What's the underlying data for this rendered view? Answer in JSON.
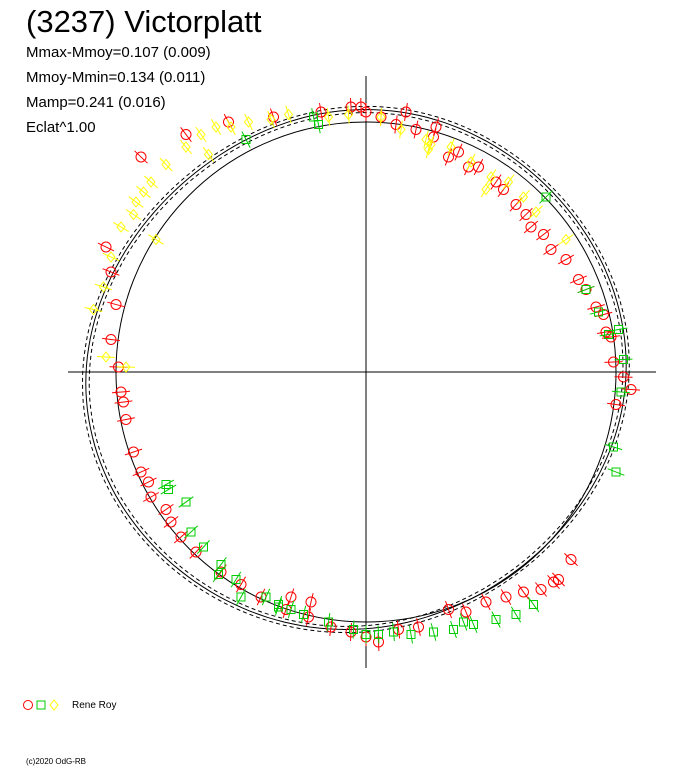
{
  "title": "(3237) Victorplatt",
  "stats": [
    "Mmax-Mmoy=0.107 (0.009)",
    "Mmoy-Mmin=0.134 (0.011)",
    "Mamp=0.241 (0.016)",
    "Eclat^1.00"
  ],
  "legend": {
    "observer": "Rene Roy",
    "markers": [
      "circle",
      "square",
      "diamond"
    ]
  },
  "credit": "(c)2020 OdG-RB",
  "colors": {
    "red": "#ff0000",
    "green": "#00cc00",
    "yellow": "#ffff00",
    "axis": "#000000"
  },
  "chart_data": {
    "type": "scatter",
    "projection": "polar lightcurve",
    "title": "(3237) Victorplatt",
    "xlim": [
      -1,
      1
    ],
    "ylim": [
      -1,
      1
    ],
    "reference_circle": true,
    "model_curves": 3,
    "series": [
      {
        "name": "Rene Roy",
        "marker": "circle",
        "color": "#ff0000",
        "points": [
          [
            -0.02,
            1.06
          ],
          [
            0.0,
            1.04
          ],
          [
            0.06,
            1.02
          ],
          [
            0.12,
            0.99
          ],
          [
            0.2,
            0.97
          ],
          [
            0.27,
            0.94
          ],
          [
            0.33,
            0.86
          ],
          [
            0.41,
            0.82
          ],
          [
            0.52,
            0.76
          ],
          [
            0.6,
            0.67
          ],
          [
            0.66,
            0.58
          ],
          [
            0.74,
            0.49
          ],
          [
            0.85,
            0.37
          ],
          [
            0.92,
            0.26
          ],
          [
            0.96,
            0.16
          ],
          [
            0.99,
            0.04
          ],
          [
            1.03,
            -0.02
          ],
          [
            1.06,
            -0.07
          ],
          [
            1.0,
            -0.13
          ],
          [
            0.82,
            -0.75
          ],
          [
            0.77,
            -0.83
          ],
          [
            0.7,
            -0.87
          ],
          [
            0.56,
            -0.9
          ],
          [
            0.48,
            -0.92
          ],
          [
            0.33,
            -0.95
          ],
          [
            0.21,
            -1.02
          ],
          [
            0.13,
            -1.03
          ],
          [
            0.05,
            -1.08
          ],
          [
            0.0,
            -1.06
          ],
          [
            -0.06,
            -1.04
          ],
          [
            -0.14,
            -1.02
          ],
          [
            -0.23,
            -0.98
          ],
          [
            -0.32,
            -0.95
          ],
          [
            -0.42,
            -0.9
          ],
          [
            -0.5,
            -0.85
          ],
          [
            -0.58,
            -0.8
          ],
          [
            -0.68,
            -0.72
          ],
          [
            -0.74,
            -0.66
          ],
          [
            -0.8,
            -0.55
          ],
          [
            -0.87,
            -0.44
          ],
          [
            -0.93,
            -0.32
          ],
          [
            -0.96,
            -0.19
          ],
          [
            -0.98,
            -0.08
          ],
          [
            -0.99,
            0.02
          ],
          [
            -1.02,
            0.13
          ],
          [
            -1.0,
            0.27
          ],
          [
            -1.02,
            0.4
          ],
          [
            -1.04,
            0.5
          ],
          [
            -0.9,
            0.86
          ],
          [
            -0.72,
            0.95
          ],
          [
            -0.55,
            1.0
          ],
          [
            -0.37,
            1.02
          ],
          [
            -0.18,
            1.04
          ],
          [
            -0.06,
            1.06
          ],
          [
            0.16,
            1.04
          ],
          [
            0.28,
            0.98
          ],
          [
            0.37,
            0.88
          ],
          [
            0.45,
            0.82
          ],
          [
            0.55,
            0.73
          ],
          [
            0.64,
            0.63
          ],
          [
            0.71,
            0.55
          ],
          [
            0.8,
            0.45
          ],
          [
            0.88,
            0.33
          ],
          [
            0.95,
            0.23
          ],
          [
            0.98,
            0.14
          ],
          [
            -0.86,
            -0.5
          ],
          [
            -0.78,
            -0.6
          ],
          [
            -0.3,
            -0.9
          ],
          [
            -0.22,
            -0.92
          ],
          [
            0.4,
            -0.96
          ],
          [
            0.63,
            -0.88
          ],
          [
            0.75,
            -0.84
          ],
          [
            -0.9,
            -0.4
          ],
          [
            -0.97,
            -0.12
          ]
        ]
      },
      {
        "name": "Rene Roy",
        "marker": "square",
        "color": "#00cc00",
        "points": [
          [
            -0.21,
            1.02
          ],
          [
            -0.48,
            0.93
          ],
          [
            -0.19,
            0.99
          ],
          [
            0.72,
            0.7
          ],
          [
            0.88,
            0.33
          ],
          [
            0.93,
            0.24
          ],
          [
            0.97,
            0.15
          ],
          [
            1.03,
            0.05
          ],
          [
            1.02,
            -0.08
          ],
          [
            0.99,
            -0.3
          ],
          [
            1.0,
            -0.4
          ],
          [
            0.67,
            -0.93
          ],
          [
            0.6,
            -0.97
          ],
          [
            0.52,
            -0.99
          ],
          [
            0.43,
            -1.01
          ],
          [
            0.35,
            -1.03
          ],
          [
            0.27,
            -1.04
          ],
          [
            0.18,
            -1.05
          ],
          [
            0.05,
            -1.05
          ],
          [
            0.0,
            -1.05
          ],
          [
            -0.05,
            -1.03
          ],
          [
            -0.15,
            -1.0
          ],
          [
            -0.25,
            -0.97
          ],
          [
            -0.3,
            -0.95
          ],
          [
            -0.4,
            -0.9
          ],
          [
            -0.52,
            -0.83
          ],
          [
            -0.58,
            -0.77
          ],
          [
            -0.65,
            -0.7
          ],
          [
            -0.7,
            -0.64
          ],
          [
            -0.79,
            -0.47
          ],
          [
            -0.8,
            -0.45
          ],
          [
            -0.72,
            -0.52
          ],
          [
            -0.5,
            -0.9
          ],
          [
            -0.35,
            -0.94
          ],
          [
            0.11,
            -1.04
          ],
          [
            0.39,
            -1.0
          ],
          [
            1.01,
            0.17
          ],
          [
            -0.35,
            -0.93
          ],
          [
            -0.59,
            -0.81
          ]
        ]
      },
      {
        "name": "Rene Roy",
        "marker": "diamond",
        "color": "#ffff00",
        "points": [
          [
            -1.09,
            0.25
          ],
          [
            -1.02,
            0.46
          ],
          [
            -0.98,
            0.58
          ],
          [
            -0.93,
            0.63
          ],
          [
            -0.92,
            0.68
          ],
          [
            -0.89,
            0.72
          ],
          [
            -0.86,
            0.76
          ],
          [
            -0.8,
            0.83
          ],
          [
            -0.72,
            0.9
          ],
          [
            -0.66,
            0.95
          ],
          [
            -0.6,
            0.98
          ],
          [
            -0.54,
            0.98
          ],
          [
            -0.47,
            1.0
          ],
          [
            -0.38,
            1.01
          ],
          [
            -0.31,
            1.03
          ],
          [
            -0.15,
            1.02
          ],
          [
            -0.07,
            1.03
          ],
          [
            0.06,
            1.02
          ],
          [
            0.14,
            0.97
          ],
          [
            0.24,
            0.93
          ],
          [
            0.26,
            0.91
          ],
          [
            0.34,
            0.9
          ],
          [
            0.42,
            0.84
          ],
          [
            0.5,
            0.78
          ],
          [
            0.57,
            0.76
          ],
          [
            0.63,
            0.7
          ],
          [
            0.68,
            0.64
          ],
          [
            0.8,
            0.53
          ],
          [
            -0.84,
            0.53
          ],
          [
            -1.05,
            0.34
          ],
          [
            -1.04,
            0.06
          ],
          [
            -0.96,
            0.02
          ],
          [
            -0.63,
            0.87
          ],
          [
            0.25,
            0.89
          ],
          [
            0.48,
            0.73
          ]
        ]
      }
    ]
  }
}
